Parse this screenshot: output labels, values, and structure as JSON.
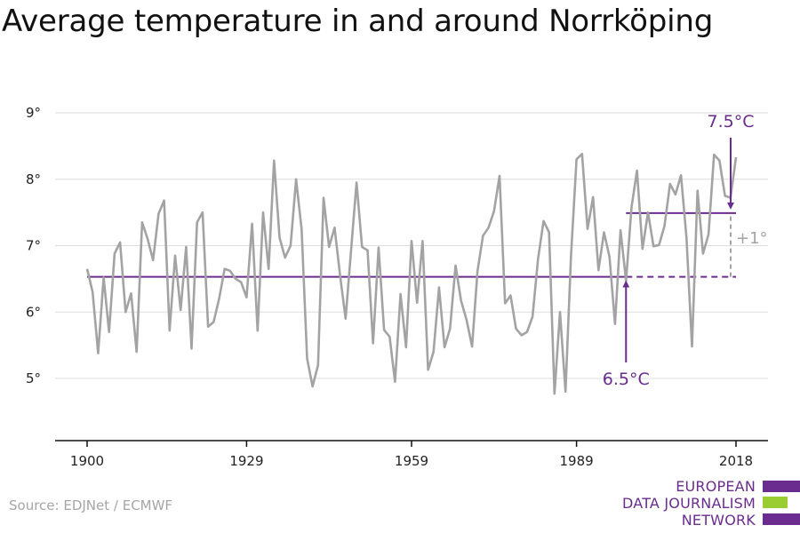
{
  "title": "Average temperature in and around Norrköping",
  "source": "Source: EDJNet / ECMWF",
  "logo": {
    "lines": [
      "EUROPEAN",
      "DATA JOURNALISM",
      "NETWORK"
    ],
    "colors": {
      "purple": "#6a2c8e",
      "green": "#9acd32"
    }
  },
  "colors": {
    "series": "#a3a3a3",
    "reference": "#6a2c8e",
    "difference": "#a3a3a3",
    "grid": "#dddddd",
    "axis": "#111111"
  },
  "chart_data": {
    "type": "line",
    "title": "Average temperature in and around Norrköping",
    "xlabel": "",
    "ylabel": "",
    "xlim": [
      1900,
      2018
    ],
    "ylim": [
      4,
      9
    ],
    "grid": true,
    "x_ticks": [
      1900,
      1929,
      1959,
      1989,
      2018
    ],
    "y_ticks": [
      5,
      6,
      7,
      8,
      9
    ],
    "y_tick_labels": [
      "5°",
      "6°",
      "7°",
      "8°",
      "9°"
    ],
    "series": [
      {
        "x": [
          1900,
          1901,
          1902,
          1903,
          1904,
          1905,
          1906,
          1907,
          1908,
          1909,
          1910,
          1911,
          1912,
          1913,
          1914,
          1915,
          1916,
          1917,
          1918,
          1919,
          1920,
          1921,
          1922,
          1923,
          1924,
          1925,
          1926,
          1927,
          1928,
          1929,
          1930,
          1931,
          1932,
          1933,
          1934,
          1935,
          1936,
          1937,
          1938,
          1939,
          1940,
          1941,
          1942,
          1943,
          1944,
          1945,
          1946,
          1947,
          1948,
          1949,
          1950,
          1951,
          1952,
          1953,
          1954,
          1955,
          1956,
          1957,
          1958,
          1959,
          1960,
          1961,
          1962,
          1963,
          1964,
          1965,
          1966,
          1967,
          1968,
          1969,
          1970,
          1971,
          1972,
          1973,
          1974,
          1975,
          1976,
          1977,
          1978,
          1979,
          1980,
          1981,
          1982,
          1983,
          1984,
          1985,
          1986,
          1987,
          1988,
          1989,
          1990,
          1991,
          1992,
          1993,
          1994,
          1995,
          1996,
          1997,
          1998,
          1999,
          2000,
          2001,
          2002,
          2003,
          2004,
          2005,
          2006,
          2007,
          2008,
          2009,
          2010,
          2011,
          2012,
          2013,
          2014,
          2015,
          2016,
          2017,
          2018
        ],
        "values": [
          6.65,
          6.3,
          5.38,
          6.52,
          5.7,
          6.88,
          7.05,
          6.0,
          6.28,
          5.4,
          7.35,
          7.1,
          6.78,
          7.48,
          7.68,
          5.72,
          6.85,
          6.03,
          6.98,
          5.45,
          7.35,
          7.5,
          5.78,
          5.85,
          6.2,
          6.65,
          6.62,
          6.5,
          6.45,
          6.22,
          7.33,
          5.72,
          7.5,
          6.65,
          8.28,
          7.12,
          6.82,
          7.0,
          8.0,
          7.25,
          5.3,
          4.88,
          5.2,
          7.72,
          6.98,
          7.27,
          6.55,
          5.9,
          6.92,
          7.95,
          6.98,
          6.93,
          5.53,
          6.97,
          5.73,
          5.63,
          4.95,
          6.27,
          5.47,
          7.07,
          6.14,
          7.07,
          5.13,
          5.4,
          6.37,
          5.47,
          5.75,
          6.7,
          6.17,
          5.88,
          5.48,
          6.62,
          7.15,
          7.27,
          7.52,
          8.05,
          6.13,
          6.25,
          5.75,
          5.65,
          5.7,
          5.93,
          6.8,
          7.37,
          7.2,
          4.77,
          6.0,
          4.8,
          6.85,
          8.3,
          8.38,
          7.25,
          7.73,
          6.63,
          7.2,
          6.83,
          5.82,
          7.23,
          6.47,
          7.58,
          8.13,
          6.95,
          7.5,
          6.99,
          7.01,
          7.3,
          7.93,
          7.77,
          8.06,
          7.12,
          5.48,
          7.83,
          6.88,
          7.17,
          8.37,
          8.28,
          7.75,
          7.72,
          8.33
        ]
      }
    ],
    "reference_lines": [
      {
        "label": "6.5°C",
        "value": 6.53,
        "from": 1900,
        "to": 2018,
        "dashed_from": 1998
      },
      {
        "label": "7.5°C",
        "value": 7.49,
        "from": 1998,
        "to": 2018
      }
    ],
    "difference_annotation": "+1°"
  }
}
